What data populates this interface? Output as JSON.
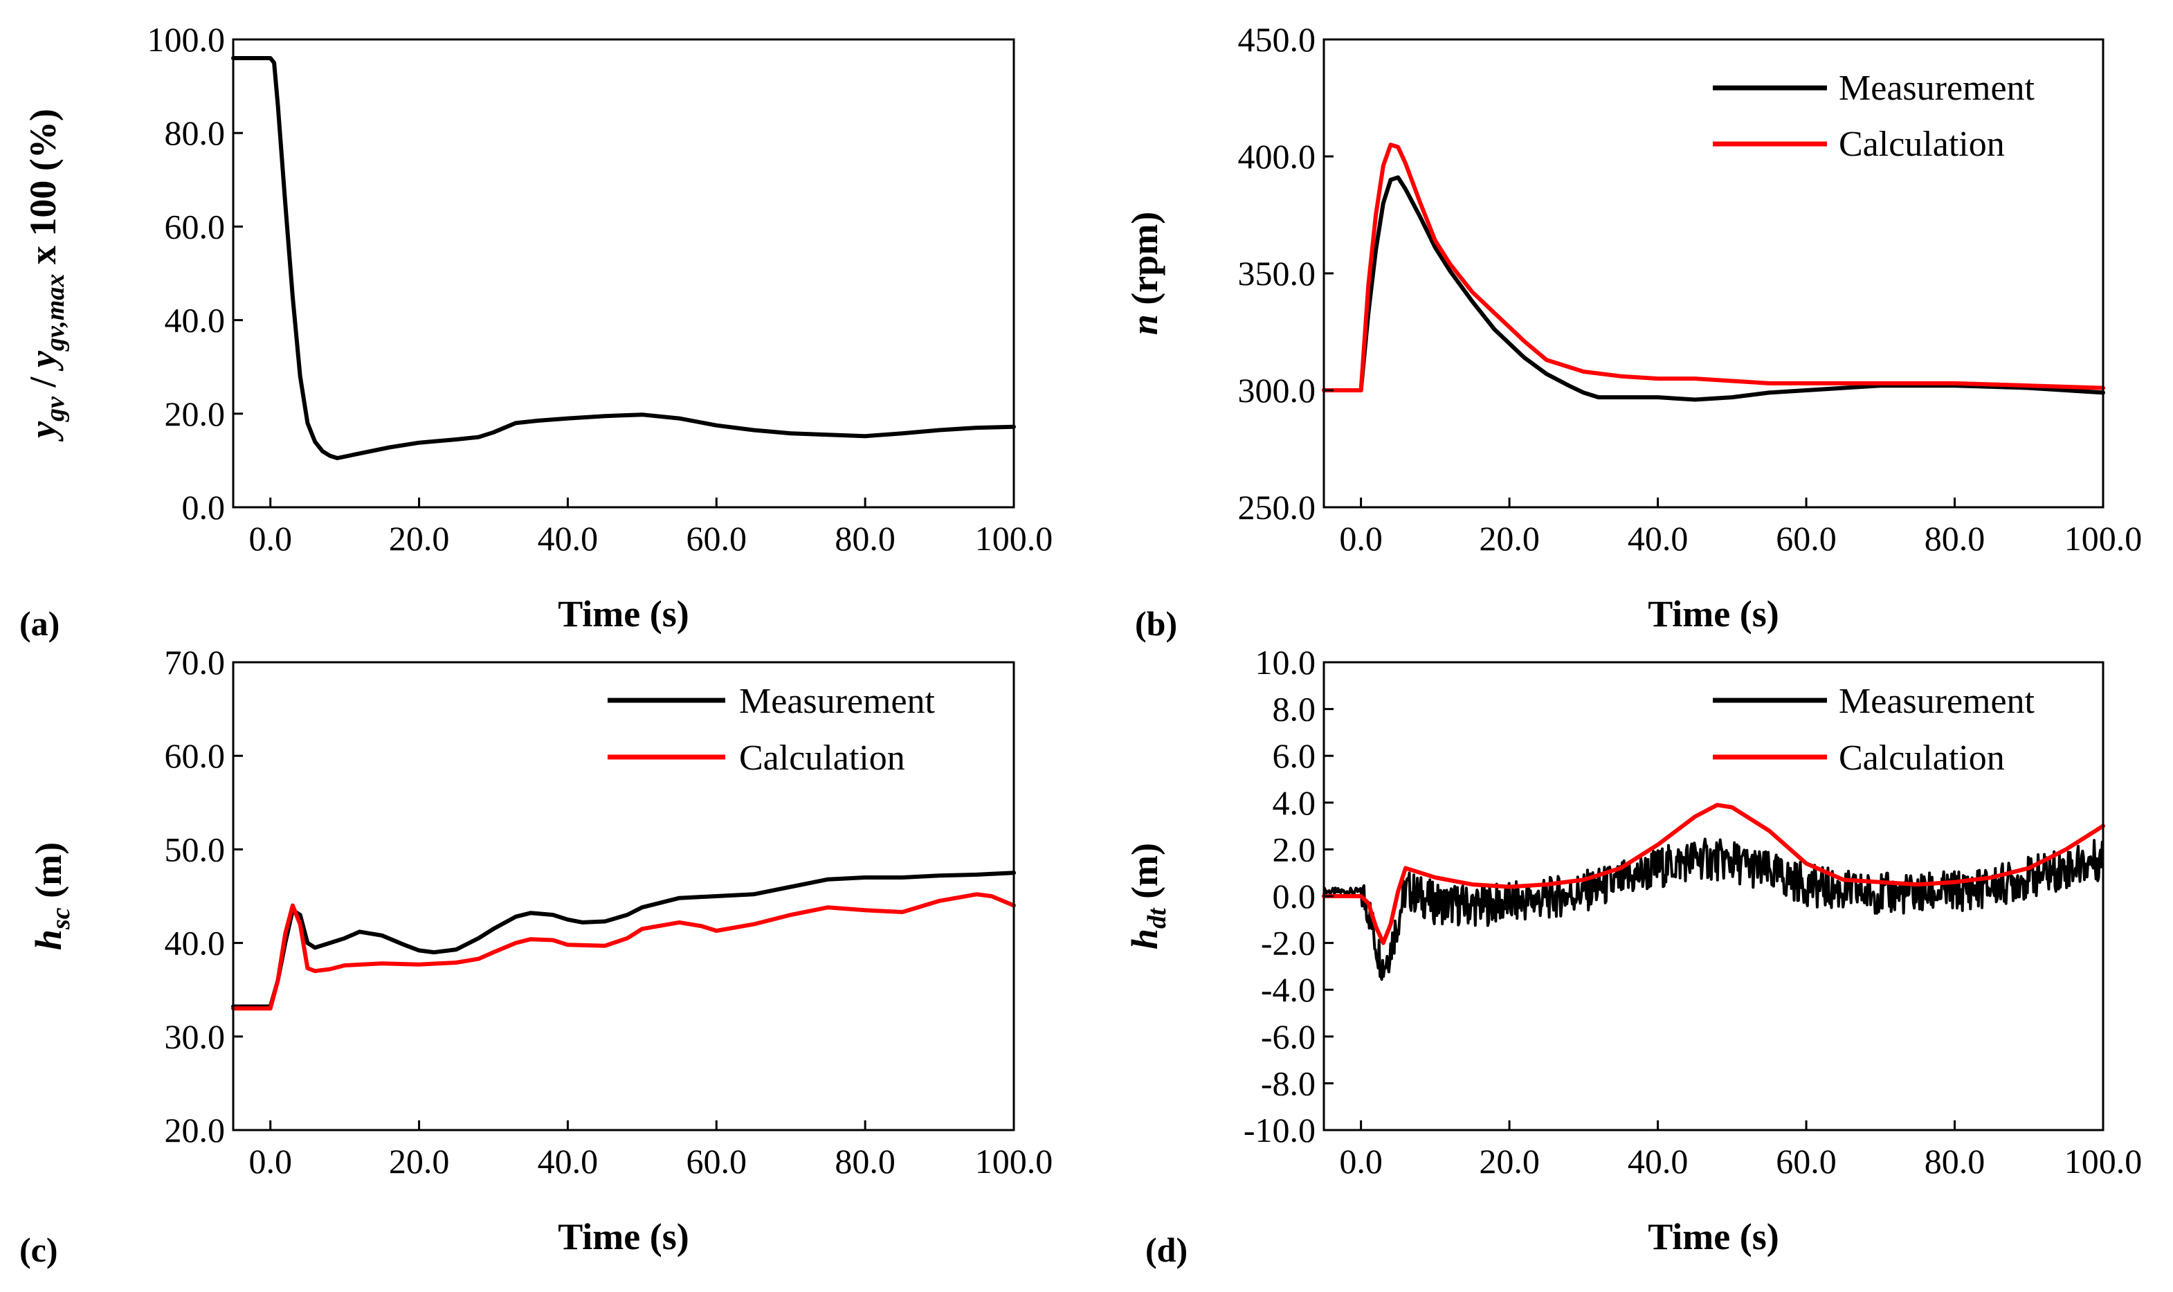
{
  "chart_data": [
    {
      "panel_label": "(a)",
      "type": "line",
      "xlabel": "Time (s)",
      "ylabel_parts": [
        "y",
        "gv",
        " / ",
        "y",
        "gv,max",
        " x 100 (%)"
      ],
      "xlim": [
        -5,
        100
      ],
      "ylim": [
        0,
        100
      ],
      "x_ticks": [
        "0.0",
        "20.0",
        "40.0",
        "60.0",
        "80.0",
        "100.0"
      ],
      "y_ticks": [
        "0.0",
        "20.0",
        "40.0",
        "60.0",
        "80.0",
        "100.0"
      ],
      "legend": [],
      "series": [
        {
          "name": "Measurement",
          "color": "#000000",
          "x": [
            -5,
            0,
            0.5,
            1,
            2,
            3,
            4,
            5,
            6,
            7,
            8,
            9,
            12,
            16,
            20,
            25,
            28,
            30,
            33,
            36,
            40,
            45,
            50,
            55,
            60,
            65,
            70,
            75,
            80,
            85,
            90,
            95,
            100
          ],
          "y": [
            96,
            96,
            95,
            86,
            65,
            45,
            28,
            18,
            14,
            12,
            11,
            10.5,
            11.5,
            12.8,
            13.8,
            14.5,
            15,
            16,
            18,
            18.5,
            19,
            19.5,
            19.8,
            19,
            17.5,
            16.5,
            15.8,
            15.5,
            15.2,
            15.8,
            16.5,
            17,
            17.2
          ]
        }
      ]
    },
    {
      "panel_label": "(b)",
      "type": "line",
      "xlabel": "Time (s)",
      "ylabel_parts": [
        "n",
        " (rpm)"
      ],
      "xlim": [
        -5,
        100
      ],
      "ylim": [
        250,
        450
      ],
      "x_ticks": [
        "0.0",
        "20.0",
        "40.0",
        "60.0",
        "80.0",
        "100.0"
      ],
      "y_ticks": [
        "250.0",
        "300.0",
        "350.0",
        "400.0",
        "450.0"
      ],
      "legend": [
        "Measurement",
        "Calculation"
      ],
      "series": [
        {
          "name": "Measurement",
          "color": "#000000",
          "x": [
            -5,
            0,
            1,
            2,
            3,
            4,
            5,
            6,
            8,
            10,
            12,
            15,
            18,
            20,
            22,
            25,
            28,
            30,
            32,
            35,
            40,
            45,
            50,
            55,
            60,
            65,
            70,
            80,
            90,
            100
          ],
          "y": [
            300,
            300,
            333,
            360,
            380,
            390,
            391,
            386,
            374,
            361,
            351,
            338,
            326,
            320,
            314,
            307,
            302,
            299,
            297,
            297,
            297,
            296,
            297,
            299,
            300,
            301,
            302,
            302,
            301,
            299
          ]
        },
        {
          "name": "Calculation",
          "color": "#ff0000",
          "x": [
            -5,
            0,
            1,
            2,
            3,
            4,
            5,
            6,
            8,
            10,
            12,
            15,
            18,
            20,
            22,
            25,
            28,
            30,
            35,
            40,
            45,
            50,
            55,
            60,
            70,
            80,
            90,
            100
          ],
          "y": [
            300,
            300,
            345,
            375,
            396,
            405,
            404,
            397,
            380,
            364,
            354,
            342,
            333,
            327,
            321,
            313,
            310,
            308,
            306,
            305,
            305,
            304,
            303,
            303,
            303,
            303,
            302,
            301
          ]
        }
      ]
    },
    {
      "panel_label": "(c)",
      "type": "line",
      "xlabel": "Time (s)",
      "ylabel_parts": [
        "h",
        "sc",
        " (m)"
      ],
      "xlim": [
        -5,
        100
      ],
      "ylim": [
        20,
        70
      ],
      "x_ticks": [
        "0.0",
        "20.0",
        "40.0",
        "60.0",
        "80.0",
        "100.0"
      ],
      "y_ticks": [
        "20.0",
        "30.0",
        "40.0",
        "50.0",
        "60.0",
        "70.0"
      ],
      "legend": [
        "Measurement",
        "Calculation"
      ],
      "series": [
        {
          "name": "Measurement",
          "color": "#000000",
          "x": [
            -5,
            0,
            1,
            2,
            3,
            4,
            5,
            6,
            8,
            10,
            12,
            15,
            18,
            20,
            22,
            25,
            28,
            30,
            33,
            35,
            38,
            40,
            42,
            45,
            48,
            50,
            55,
            60,
            65,
            70,
            75,
            80,
            85,
            90,
            95,
            100
          ],
          "y": [
            33.2,
            33.2,
            36,
            40,
            43.5,
            43,
            40,
            39.5,
            40,
            40.5,
            41.2,
            40.8,
            39.8,
            39.2,
            39,
            39.3,
            40.5,
            41.5,
            42.8,
            43.2,
            43,
            42.5,
            42.2,
            42.3,
            43,
            43.8,
            44.8,
            45,
            45.2,
            46,
            46.8,
            47,
            47,
            47.2,
            47.3,
            47.5
          ]
        },
        {
          "name": "Calculation",
          "color": "#ff0000",
          "x": [
            -5,
            0,
            1,
            2,
            3,
            4,
            5,
            6,
            8,
            10,
            15,
            20,
            25,
            28,
            30,
            33,
            35,
            38,
            40,
            45,
            48,
            50,
            55,
            58,
            60,
            65,
            70,
            75,
            80,
            85,
            90,
            95,
            97,
            100
          ],
          "y": [
            33,
            33,
            36,
            41,
            44,
            42,
            37.3,
            37,
            37.2,
            37.6,
            37.8,
            37.7,
            37.9,
            38.3,
            39,
            40,
            40.4,
            40.3,
            39.8,
            39.7,
            40.5,
            41.5,
            42.2,
            41.8,
            41.3,
            42,
            43,
            43.8,
            43.5,
            43.3,
            44.5,
            45.2,
            45,
            44
          ]
        }
      ]
    },
    {
      "panel_label": "(d)",
      "type": "line",
      "xlabel": "Time (s)",
      "ylabel_parts": [
        "h",
        "dt",
        " (m)"
      ],
      "xlim": [
        -5,
        100
      ],
      "ylim": [
        -10,
        10
      ],
      "x_ticks": [
        "0.0",
        "20.0",
        "40.0",
        "60.0",
        "80.0",
        "100.0"
      ],
      "y_ticks": [
        "-10.0",
        "-8.0",
        "-6.0",
        "-4.0",
        "-2.0",
        "0.0",
        "2.0",
        "4.0",
        "6.0",
        "8.0",
        "10.0"
      ],
      "legend": [
        "Measurement",
        "Calculation"
      ],
      "series": [
        {
          "name": "Measurement",
          "color": "#000000",
          "noise_amplitude": 0.9,
          "x": [
            -5,
            0,
            1,
            2,
            3,
            4,
            5,
            6,
            8,
            10,
            15,
            20,
            25,
            30,
            35,
            40,
            45,
            50,
            55,
            60,
            65,
            70,
            75,
            80,
            85,
            90,
            95,
            100
          ],
          "y": [
            0.2,
            0.2,
            -0.5,
            -2.0,
            -3.0,
            -2.2,
            -1.0,
            0.3,
            0.0,
            -0.3,
            -0.4,
            -0.3,
            -0.1,
            0.2,
            0.6,
            1.2,
            1.6,
            1.5,
            1.0,
            0.5,
            0.2,
            0.1,
            0.1,
            0.2,
            0.4,
            0.8,
            1.2,
            1.6
          ]
        },
        {
          "name": "Calculation",
          "color": "#ff0000",
          "x": [
            -5,
            0,
            1,
            2,
            3,
            4,
            5,
            6,
            8,
            10,
            15,
            20,
            25,
            30,
            35,
            40,
            45,
            48,
            50,
            55,
            60,
            65,
            70,
            75,
            80,
            85,
            90,
            95,
            100
          ],
          "y": [
            0,
            0,
            -0.3,
            -1.3,
            -2.0,
            -1.2,
            0.2,
            1.2,
            1.0,
            0.8,
            0.5,
            0.4,
            0.5,
            0.7,
            1.2,
            2.2,
            3.4,
            3.9,
            3.8,
            2.8,
            1.4,
            0.7,
            0.6,
            0.5,
            0.6,
            0.8,
            1.2,
            2.0,
            3.0
          ]
        }
      ]
    }
  ]
}
